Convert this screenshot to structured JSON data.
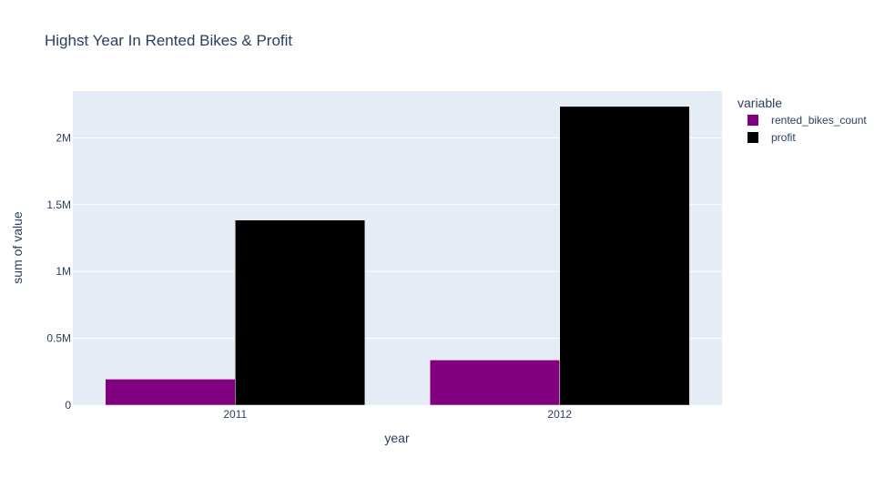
{
  "chart_data": {
    "type": "bar",
    "barmode": "group",
    "title": "Highst Year In Rented Bikes & Profit",
    "xlabel": "year",
    "ylabel": "sum of value",
    "categories": [
      "2011",
      "2012"
    ],
    "series": [
      {
        "name": "rented_bikes_count",
        "color": "#800080",
        "values": [
          195000,
          338000
        ]
      },
      {
        "name": "profit",
        "color": "#000000",
        "values": [
          1385000,
          2235000
        ]
      }
    ],
    "ylim": [
      0,
      2350000
    ],
    "yticks": [
      {
        "value": 0,
        "label": "0"
      },
      {
        "value": 500000,
        "label": "0.5M"
      },
      {
        "value": 1000000,
        "label": "1M"
      },
      {
        "value": 1500000,
        "label": "1.5M"
      },
      {
        "value": 2000000,
        "label": "2M"
      }
    ],
    "grid": true,
    "legend": {
      "title": "variable",
      "placement": "right-top"
    },
    "colors": {
      "plot_background": "#E5ECF6",
      "grid": "#ffffff",
      "text": "#2a3f5f"
    }
  }
}
